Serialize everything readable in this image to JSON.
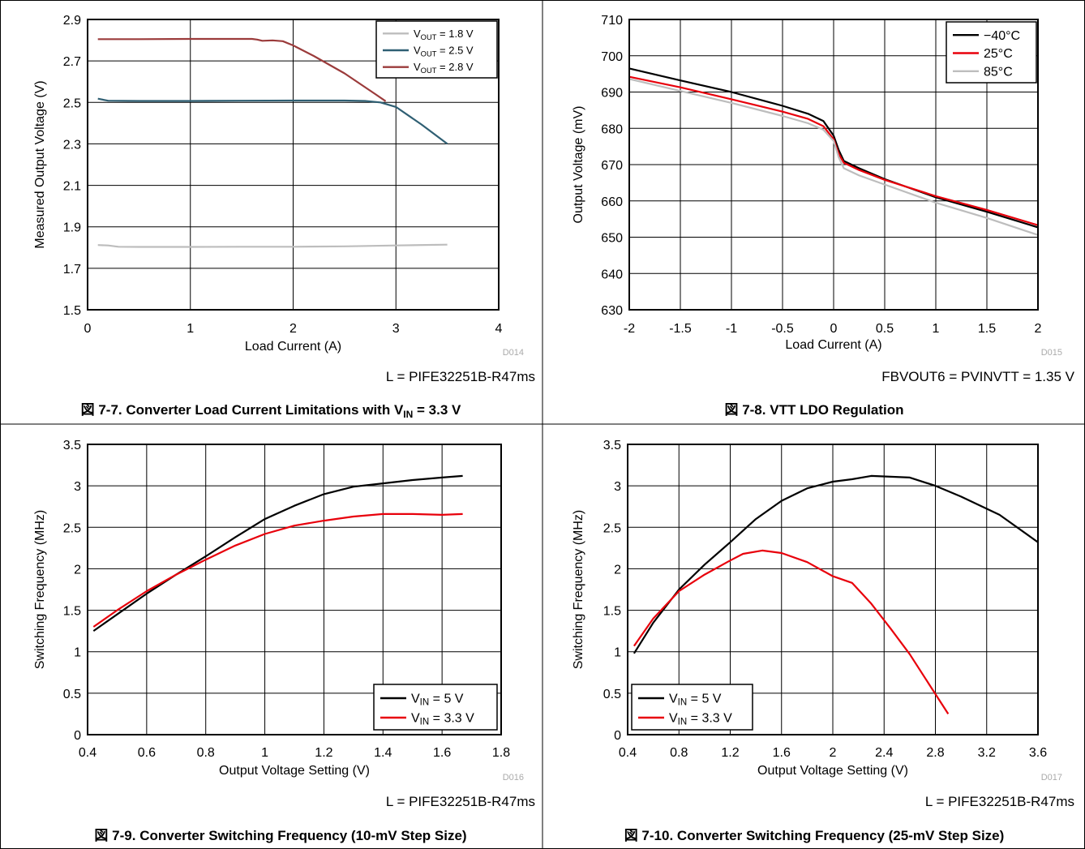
{
  "colors": {
    "black": "#000000",
    "red": "#e8000b",
    "gray": "#bdbdbd",
    "teal": "#2f5f73",
    "brown": "#9b3b3b",
    "grid": "#000000",
    "code_gray": "#aaaaaa"
  },
  "chart_data": [
    {
      "type": "line",
      "title": "Converter Load Current Limitations with V",
      "title_prefix": "図 7-7.",
      "title_sub": "IN",
      "title_suffix": " = 3.3 V",
      "xlabel": "Load Current (A)",
      "ylabel": "Measured Output Voltage (V)",
      "xlim": [
        0,
        4
      ],
      "ylim": [
        1.5,
        2.9
      ],
      "xticks": [
        0,
        1,
        2,
        3,
        4
      ],
      "yticks": [
        1.5,
        1.7,
        1.9,
        2.1,
        2.3,
        2.5,
        2.7,
        2.9
      ],
      "xticklabels": [
        "0",
        "1",
        "2",
        "3",
        "4"
      ],
      "yticklabels": [
        "1.5",
        "1.7",
        "1.9",
        "2.1",
        "2.3",
        "2.5",
        "2.7",
        "2.9"
      ],
      "code": "D014",
      "note": "L = PIFE32251B-R47ms",
      "grid": true,
      "legend_position": "top-right",
      "series": [
        {
          "name_main": "V",
          "name_sub": "OUT",
          "name_rest": " = 1.8 V",
          "color": "gray",
          "x": [
            0.1,
            0.2,
            0.3,
            0.5,
            1.0,
            1.5,
            2.0,
            2.5,
            3.0,
            3.5
          ],
          "y": [
            1.812,
            1.81,
            1.804,
            1.803,
            1.803,
            1.804,
            1.804,
            1.806,
            1.81,
            1.814
          ]
        },
        {
          "name_main": "V",
          "name_sub": "OUT",
          "name_rest": " = 2.5 V",
          "color": "teal",
          "x": [
            0.1,
            0.2,
            0.5,
            1.0,
            1.5,
            2.0,
            2.5,
            2.7,
            2.85,
            3.0,
            3.25,
            3.5
          ],
          "y": [
            2.518,
            2.508,
            2.507,
            2.507,
            2.508,
            2.509,
            2.509,
            2.507,
            2.5,
            2.478,
            2.393,
            2.3
          ]
        },
        {
          "name_main": "V",
          "name_sub": "OUT",
          "name_rest": " = 2.8 V",
          "color": "brown",
          "x": [
            0.1,
            0.5,
            1.0,
            1.5,
            1.6,
            1.65,
            1.7,
            1.8,
            1.9,
            2.0,
            2.2,
            2.5,
            2.8,
            2.9
          ],
          "y": [
            2.805,
            2.805,
            2.806,
            2.806,
            2.806,
            2.803,
            2.797,
            2.799,
            2.795,
            2.775,
            2.724,
            2.64,
            2.54,
            2.506
          ]
        }
      ]
    },
    {
      "type": "line",
      "title": "VTT LDO Regulation",
      "title_prefix": "図 7-8.",
      "xlabel": "Load Current (A)",
      "ylabel": "Output Voltage (mV)",
      "xlim": [
        -2,
        2
      ],
      "ylim": [
        630,
        710
      ],
      "xticks": [
        -2,
        -1.5,
        -1,
        -0.5,
        0,
        0.5,
        1,
        1.5,
        2
      ],
      "yticks": [
        630,
        640,
        650,
        660,
        670,
        680,
        690,
        700,
        710
      ],
      "xticklabels": [
        "-2",
        "-1.5",
        "-1",
        "-0.5",
        "0",
        "0.5",
        "1",
        "1.5",
        "2"
      ],
      "yticklabels": [
        "630",
        "640",
        "650",
        "660",
        "670",
        "680",
        "690",
        "700",
        "710"
      ],
      "code": "D015",
      "note": "FBVOUT6 = PVINVTT = 1.35 V",
      "grid": true,
      "legend_position": "top-right",
      "series": [
        {
          "name": "−40°C",
          "color": "black",
          "x": [
            -2,
            -1.5,
            -1,
            -0.5,
            -0.25,
            -0.1,
            0,
            0.05,
            0.1,
            0.25,
            0.5,
            1,
            1.5,
            2
          ],
          "y": [
            696.5,
            693.2,
            690.0,
            686.2,
            684.0,
            682.0,
            678.0,
            674.0,
            671.0,
            669.0,
            666.0,
            661.0,
            657.0,
            652.7
          ]
        },
        {
          "name": "25°C",
          "color": "red",
          "x": [
            -2,
            -1.5,
            -1,
            -0.5,
            -0.25,
            -0.1,
            0,
            0.05,
            0.1,
            0.25,
            0.5,
            1,
            1.5,
            2
          ],
          "y": [
            694.2,
            691.3,
            688.0,
            684.6,
            682.6,
            680.6,
            677.0,
            673.0,
            670.5,
            668.5,
            665.8,
            661.3,
            657.5,
            653.3
          ]
        },
        {
          "name": "85°C",
          "color": "gray",
          "x": [
            -2,
            -1.5,
            -1,
            -0.5,
            -0.25,
            -0.1,
            0,
            0.05,
            0.1,
            0.25,
            0.5,
            1,
            1.5,
            2
          ],
          "y": [
            693.6,
            690.3,
            687.0,
            683.4,
            681.4,
            679.6,
            676.5,
            672.0,
            669.0,
            667.0,
            664.5,
            659.5,
            655.3,
            650.6
          ]
        }
      ]
    },
    {
      "type": "line",
      "title": "Converter Switching Frequency (10-mV Step Size)",
      "title_prefix": "図 7-9.",
      "xlabel": "Output Voltage Setting (V)",
      "ylabel": "Switching Frequency (MHz)",
      "xlim": [
        0.4,
        1.8
      ],
      "ylim": [
        0,
        3.5
      ],
      "xticks": [
        0.4,
        0.6,
        0.8,
        1.0,
        1.2,
        1.4,
        1.6,
        1.8
      ],
      "yticks": [
        0,
        0.5,
        1.0,
        1.5,
        2.0,
        2.5,
        3.0,
        3.5
      ],
      "xticklabels": [
        "0.4",
        "0.6",
        "0.8",
        "1",
        "1.2",
        "1.4",
        "1.6",
        "1.8"
      ],
      "yticklabels": [
        "0",
        "0.5",
        "1",
        "1.5",
        "2",
        "2.5",
        "3",
        "3.5"
      ],
      "code": "D016",
      "note": "L = PIFE32251B-R47ms",
      "grid": true,
      "legend_position": "bottom-right",
      "series": [
        {
          "name_main": "V",
          "name_sub": "IN",
          "name_rest": " = 5 V",
          "color": "black",
          "x": [
            0.42,
            0.5,
            0.6,
            0.7,
            0.8,
            0.9,
            1.0,
            1.1,
            1.2,
            1.3,
            1.4,
            1.5,
            1.6,
            1.67
          ],
          "y": [
            1.25,
            1.45,
            1.7,
            1.93,
            2.15,
            2.38,
            2.6,
            2.76,
            2.9,
            2.99,
            3.03,
            3.07,
            3.1,
            3.12
          ]
        },
        {
          "name_main": "V",
          "name_sub": "IN",
          "name_rest": " = 3.3 V",
          "color": "red",
          "x": [
            0.42,
            0.5,
            0.6,
            0.7,
            0.8,
            0.9,
            1.0,
            1.1,
            1.2,
            1.3,
            1.4,
            1.5,
            1.6,
            1.67
          ],
          "y": [
            1.3,
            1.5,
            1.73,
            1.93,
            2.11,
            2.28,
            2.42,
            2.52,
            2.58,
            2.63,
            2.66,
            2.66,
            2.65,
            2.66
          ]
        }
      ]
    },
    {
      "type": "line",
      "title": "Converter Switching Frequency (25-mV Step Size)",
      "title_prefix": "図 7-10.",
      "xlabel": "Output Voltage Setting (V)",
      "ylabel": "Switching Frequency (MHz)",
      "xlim": [
        0.4,
        3.6
      ],
      "ylim": [
        0,
        3.5
      ],
      "xticks": [
        0.4,
        0.8,
        1.2,
        1.6,
        2.0,
        2.4,
        2.8,
        3.2,
        3.6
      ],
      "yticks": [
        0,
        0.5,
        1.0,
        1.5,
        2.0,
        2.5,
        3.0,
        3.5
      ],
      "xticklabels": [
        "0.4",
        "0.8",
        "1.2",
        "1.6",
        "2",
        "2.4",
        "2.8",
        "3.2",
        "3.6"
      ],
      "yticklabels": [
        "0",
        "0.5",
        "1",
        "1.5",
        "2",
        "2.5",
        "3",
        "3.5"
      ],
      "code": "D017",
      "note": "L = PIFE32251B-R47ms",
      "grid": true,
      "legend_position": "bottom-left",
      "series": [
        {
          "name_main": "V",
          "name_sub": "IN",
          "name_rest": " = 5 V",
          "color": "black",
          "x": [
            0.45,
            0.6,
            0.8,
            1.0,
            1.2,
            1.4,
            1.6,
            1.8,
            2.0,
            2.15,
            2.3,
            2.45,
            2.6,
            2.8,
            3.0,
            3.3,
            3.6
          ],
          "y": [
            0.98,
            1.35,
            1.75,
            2.05,
            2.32,
            2.6,
            2.82,
            2.97,
            3.05,
            3.08,
            3.12,
            3.11,
            3.1,
            3.0,
            2.87,
            2.65,
            2.32
          ]
        },
        {
          "name_main": "V",
          "name_sub": "IN",
          "name_rest": " = 3.3 V",
          "color": "red",
          "x": [
            0.45,
            0.6,
            0.8,
            1.0,
            1.2,
            1.3,
            1.45,
            1.6,
            1.8,
            2.0,
            2.15,
            2.3,
            2.45,
            2.6,
            2.75,
            2.9
          ],
          "y": [
            1.07,
            1.4,
            1.73,
            1.93,
            2.1,
            2.18,
            2.22,
            2.19,
            2.08,
            1.91,
            1.83,
            1.58,
            1.28,
            0.97,
            0.61,
            0.25
          ]
        }
      ]
    }
  ]
}
